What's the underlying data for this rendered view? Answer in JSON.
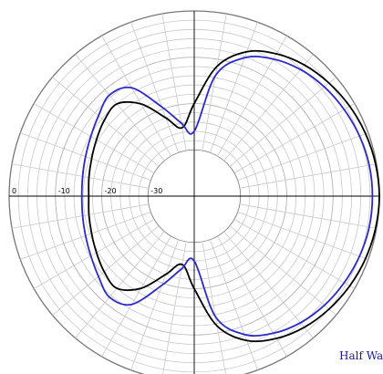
{
  "chart_data": {
    "type": "polar-line",
    "units": "dB",
    "radial_range": [
      -40,
      0
    ],
    "radial_ticks": [
      {
        "value": 0,
        "label": "0"
      },
      {
        "value": -10,
        "label": "-10"
      },
      {
        "value": -20,
        "label": "-20"
      },
      {
        "value": -30,
        "label": "-30"
      }
    ],
    "angular_grid_step_deg": 10,
    "radial_grid_step_db": 2,
    "zero_direction": "right",
    "caption": "Half Wave",
    "colors": {
      "grid": "#c8c8c8",
      "axis": "#000000",
      "caption": "#1a1aa0"
    },
    "series": [
      {
        "color": "#000000",
        "angles_deg": [
          0,
          10,
          20,
          30,
          40,
          50,
          60,
          70,
          80,
          90,
          100,
          110,
          120,
          130,
          140,
          150,
          160,
          170,
          180,
          190,
          200,
          210,
          220,
          230,
          240,
          250,
          260,
          270,
          280,
          290,
          300,
          310,
          320,
          330,
          340,
          350
        ],
        "values_db": [
          0,
          -0.2,
          -0.6,
          -1.2,
          -2.0,
          -3.0,
          -4.5,
          -6.8,
          -11.5,
          -20.0,
          -25.0,
          -22.0,
          -17.0,
          -14.0,
          -14.6,
          -15.6,
          -16.4,
          -16.9,
          -17.2,
          -16.9,
          -16.4,
          -15.6,
          -14.6,
          -14.0,
          -17.0,
          -22.0,
          -25.0,
          -20.0,
          -11.5,
          -6.8,
          -4.5,
          -3.0,
          -2.0,
          -1.2,
          -0.6,
          -0.2
        ]
      },
      {
        "color": "#2a2acc",
        "angles_deg": [
          0,
          10,
          20,
          30,
          40,
          50,
          60,
          70,
          80,
          90,
          100,
          110,
          120,
          130,
          140,
          150,
          160,
          170,
          180,
          190,
          200,
          210,
          220,
          230,
          240,
          250,
          260,
          270,
          280,
          290,
          300,
          310,
          320,
          330,
          340,
          350
        ],
        "values_db": [
          -1.5,
          -1.6,
          -2.0,
          -2.6,
          -3.3,
          -4.3,
          -5.8,
          -8.2,
          -13.5,
          -26.0,
          -24.0,
          -19.5,
          -13.0,
          -11.5,
          -13.0,
          -14.2,
          -15.0,
          -15.5,
          -15.7,
          -15.5,
          -15.0,
          -14.2,
          -13.0,
          -11.5,
          -13.0,
          -19.5,
          -24.0,
          -26.0,
          -13.5,
          -8.2,
          -5.8,
          -4.3,
          -3.3,
          -2.6,
          -2.0,
          -1.6
        ]
      }
    ]
  }
}
